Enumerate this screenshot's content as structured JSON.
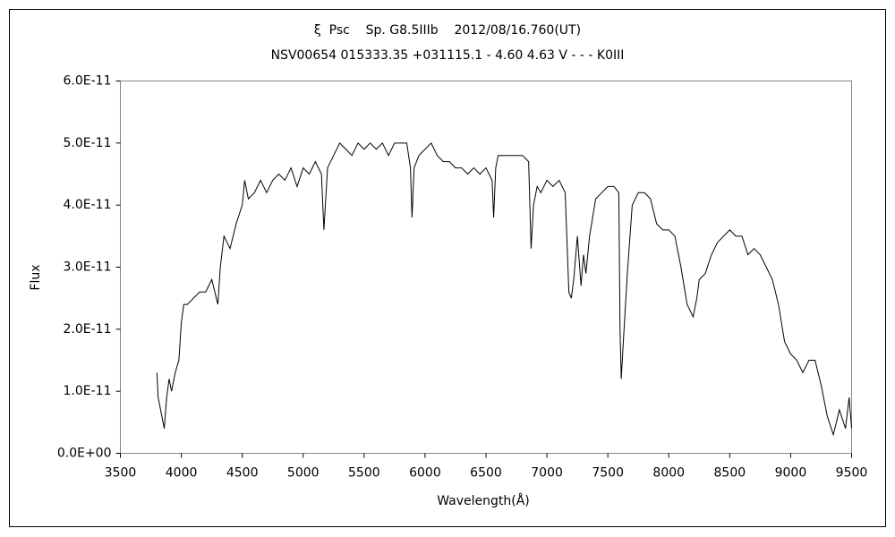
{
  "chart_data": {
    "type": "line",
    "title": "ξ  Psc    Sp. G8.5IIIb    2012/08/16.760(UT)",
    "subtitle": "NSV00654 015333.35 +031115.1 - 4.60 4.63 V - - - K0III",
    "xlabel": "Wavelength(Å)",
    "ylabel": "Flux",
    "xlim": [
      3500,
      9500
    ],
    "xticks": [
      3500,
      4000,
      4500,
      5000,
      5500,
      6000,
      6500,
      7000,
      7500,
      8000,
      8500,
      9000,
      9500
    ],
    "ylim": [
      0,
      6e-11
    ],
    "yticks": [
      {
        "value": 0,
        "label": "0.0E+00"
      },
      {
        "value": 1e-11,
        "label": "1.0E-11"
      },
      {
        "value": 2e-11,
        "label": "2.0E-11"
      },
      {
        "value": 3e-11,
        "label": "3.0E-11"
      },
      {
        "value": 4e-11,
        "label": "4.0E-11"
      },
      {
        "value": 5e-11,
        "label": "5.0E-11"
      },
      {
        "value": 6e-11,
        "label": "6.0E-11"
      }
    ],
    "x": [
      3800,
      3810,
      3840,
      3860,
      3880,
      3900,
      3920,
      3950,
      3980,
      4000,
      4020,
      4050,
      4100,
      4150,
      4200,
      4250,
      4300,
      4320,
      4350,
      4400,
      4450,
      4500,
      4520,
      4550,
      4600,
      4650,
      4700,
      4750,
      4800,
      4850,
      4900,
      4950,
      5000,
      5050,
      5100,
      5150,
      5170,
      5200,
      5250,
      5300,
      5350,
      5400,
      5450,
      5500,
      5550,
      5600,
      5650,
      5700,
      5750,
      5800,
      5850,
      5880,
      5893,
      5910,
      5950,
      6000,
      6050,
      6100,
      6150,
      6200,
      6250,
      6300,
      6350,
      6400,
      6450,
      6500,
      6550,
      6563,
      6580,
      6600,
      6650,
      6700,
      6750,
      6800,
      6850,
      6870,
      6890,
      6920,
      6950,
      7000,
      7050,
      7100,
      7150,
      7180,
      7200,
      7220,
      7250,
      7280,
      7300,
      7320,
      7350,
      7400,
      7450,
      7500,
      7550,
      7590,
      7600,
      7610,
      7630,
      7660,
      7700,
      7750,
      7800,
      7850,
      7900,
      7950,
      8000,
      8050,
      8100,
      8150,
      8200,
      8230,
      8250,
      8300,
      8350,
      8400,
      8450,
      8500,
      8550,
      8600,
      8650,
      8700,
      8750,
      8800,
      8850,
      8900,
      8950,
      9000,
      9050,
      9100,
      9150,
      9200,
      9250,
      9300,
      9350,
      9400,
      9450,
      9480,
      9500
    ],
    "series": [
      {
        "name": "Flux",
        "color": "#000000",
        "values": [
          1.3e-11,
          9e-12,
          6e-12,
          4e-12,
          9e-12,
          1.2e-11,
          1e-11,
          1.3e-11,
          1.5e-11,
          2.1e-11,
          2.4e-11,
          2.4e-11,
          2.5e-11,
          2.6e-11,
          2.6e-11,
          2.8e-11,
          2.4e-11,
          3e-11,
          3.5e-11,
          3.3e-11,
          3.7e-11,
          4e-11,
          4.4e-11,
          4.1e-11,
          4.2e-11,
          4.4e-11,
          4.2e-11,
          4.4e-11,
          4.5e-11,
          4.4e-11,
          4.6e-11,
          4.3e-11,
          4.6e-11,
          4.5e-11,
          4.7e-11,
          4.5e-11,
          3.6e-11,
          4.6e-11,
          4.8e-11,
          5e-11,
          4.9e-11,
          4.8e-11,
          5e-11,
          4.9e-11,
          5e-11,
          4.9e-11,
          5e-11,
          4.8e-11,
          5e-11,
          5e-11,
          5e-11,
          4.6e-11,
          3.8e-11,
          4.6e-11,
          4.8e-11,
          4.9e-11,
          5e-11,
          4.8e-11,
          4.7e-11,
          4.7e-11,
          4.6e-11,
          4.6e-11,
          4.5e-11,
          4.6e-11,
          4.5e-11,
          4.6e-11,
          4.4e-11,
          3.8e-11,
          4.6e-11,
          4.8e-11,
          4.8e-11,
          4.8e-11,
          4.8e-11,
          4.8e-11,
          4.7e-11,
          3.3e-11,
          4e-11,
          4.3e-11,
          4.2e-11,
          4.4e-11,
          4.3e-11,
          4.4e-11,
          4.2e-11,
          2.6e-11,
          2.5e-11,
          2.8e-11,
          3.5e-11,
          2.7e-11,
          3.2e-11,
          2.9e-11,
          3.5e-11,
          4.1e-11,
          4.2e-11,
          4.3e-11,
          4.3e-11,
          4.2e-11,
          2e-11,
          1.2e-11,
          1.9e-11,
          2.9e-11,
          4e-11,
          4.2e-11,
          4.2e-11,
          4.1e-11,
          3.7e-11,
          3.6e-11,
          3.6e-11,
          3.5e-11,
          3e-11,
          2.4e-11,
          2.2e-11,
          2.5e-11,
          2.8e-11,
          2.9e-11,
          3.2e-11,
          3.4e-11,
          3.5e-11,
          3.6e-11,
          3.5e-11,
          3.5e-11,
          3.2e-11,
          3.3e-11,
          3.2e-11,
          3e-11,
          2.8e-11,
          2.4e-11,
          1.8e-11,
          1.6e-11,
          1.5e-11,
          1.3e-11,
          1.5e-11,
          1.5e-11,
          1.1e-11,
          6e-12,
          3e-12,
          7e-12,
          4e-12,
          9e-12,
          4e-12
        ]
      }
    ]
  }
}
